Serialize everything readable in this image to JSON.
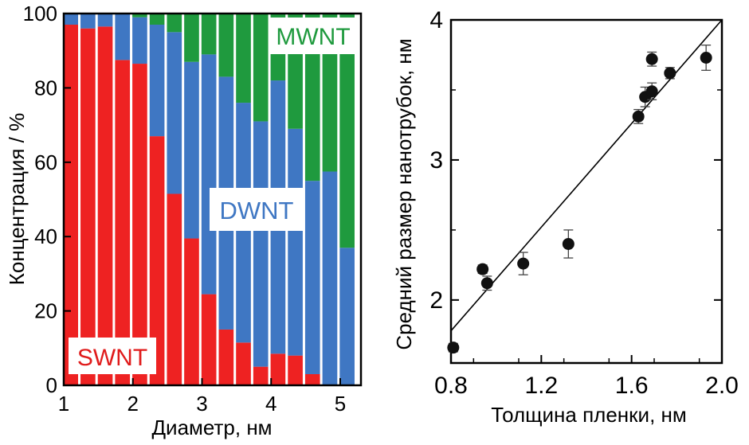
{
  "chart_data": [
    {
      "type": "bar",
      "stacked": true,
      "xlabel": "Диаметр, нм",
      "ylabel": "Концентрация / %",
      "xlim": [
        1.0,
        5.3
      ],
      "ylim": [
        0,
        100
      ],
      "x_ticks": [
        "1",
        "2",
        "3",
        "4",
        "5"
      ],
      "y_ticks": [
        "0",
        "20",
        "40",
        "60",
        "80",
        "100"
      ],
      "grid": false,
      "x": [
        1.1,
        1.35,
        1.6,
        1.85,
        2.1,
        2.35,
        2.6,
        2.85,
        3.1,
        3.35,
        3.6,
        3.85,
        4.1,
        4.35,
        4.6,
        4.85,
        5.1
      ],
      "series": [
        {
          "name": "SWNT",
          "color": "#ee2222",
          "values": [
            97,
            96,
            96.5,
            87.5,
            86.5,
            67,
            51.5,
            39.5,
            24.5,
            15,
            11.5,
            5,
            8.5,
            8,
            3,
            0,
            0
          ]
        },
        {
          "name": "DWNT",
          "color": "#3f77c3",
          "values": [
            3,
            4,
            3.5,
            12.5,
            12.5,
            30,
            43.5,
            47.5,
            64.5,
            68,
            64.5,
            66,
            73.5,
            61,
            52,
            57.5,
            37
          ]
        },
        {
          "name": "MWNT",
          "color": "#1f9a3e",
          "values": [
            0,
            0,
            0,
            0,
            1,
            3,
            5,
            13,
            11,
            17,
            24,
            29,
            18,
            31,
            45,
            42.5,
            63
          ]
        }
      ],
      "annotations": [
        "SWNT",
        "DWNT",
        "MWNT"
      ]
    },
    {
      "type": "scatter",
      "xlabel": "Толщина пленки, нм",
      "ylabel": "Средний размер нанотрубок, нм",
      "xlim": [
        0.8,
        2.0
      ],
      "ylim": [
        1.55,
        4.0
      ],
      "x_ticks": [
        "0.8",
        "1.2",
        "1.6",
        "2.0"
      ],
      "y_ticks": [
        "2",
        "3",
        "4"
      ],
      "grid": false,
      "points": [
        {
          "x": 0.81,
          "y": 1.66,
          "err": 0.03
        },
        {
          "x": 0.94,
          "y": 2.22,
          "err": 0.03
        },
        {
          "x": 0.96,
          "y": 2.12,
          "err": 0.05
        },
        {
          "x": 1.12,
          "y": 2.26,
          "err": 0.08
        },
        {
          "x": 1.32,
          "y": 2.4,
          "err": 0.1
        },
        {
          "x": 1.63,
          "y": 3.31,
          "err": 0.05
        },
        {
          "x": 1.66,
          "y": 3.45,
          "err": 0.07
        },
        {
          "x": 1.69,
          "y": 3.49,
          "err": 0.06
        },
        {
          "x": 1.69,
          "y": 3.72,
          "err": 0.05
        },
        {
          "x": 1.77,
          "y": 3.62,
          "err": 0.04
        },
        {
          "x": 1.93,
          "y": 3.73,
          "err": 0.09
        }
      ],
      "fit_line": {
        "x": [
          0.8,
          2.0
        ],
        "y": [
          1.78,
          4.0
        ]
      }
    }
  ]
}
